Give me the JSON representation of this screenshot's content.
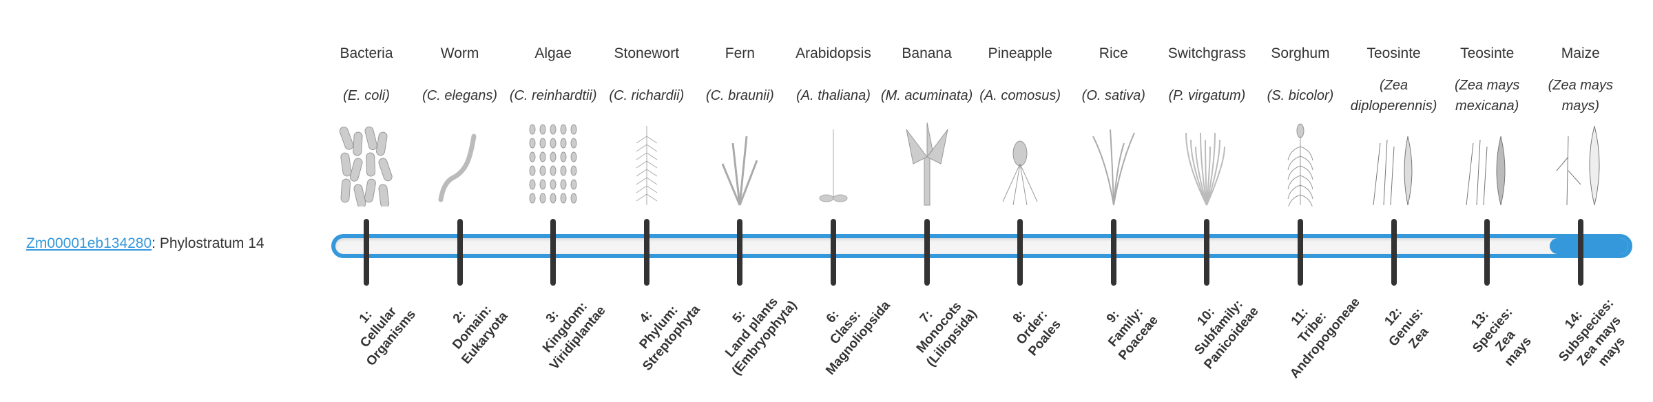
{
  "gene": {
    "id": "Zm00001eb134280",
    "separator": ":",
    "label": "Phylostratum 14"
  },
  "progress": {
    "value": 14,
    "max": 14,
    "color": "#3498db"
  },
  "organisms": [
    {
      "common": "Bacteria",
      "sci": "(E. coli)",
      "icon": "bacteria-illustration"
    },
    {
      "common": "Worm",
      "sci": "(C. elegans)",
      "icon": "worm-illustration"
    },
    {
      "common": "Algae",
      "sci": "(C. reinhardtii)",
      "icon": "algae-illustration"
    },
    {
      "common": "Stonewort",
      "sci": "(C. richardii)",
      "icon": "stonewort-illustration"
    },
    {
      "common": "Fern",
      "sci": "(C. braunii)",
      "icon": "fern-illustration"
    },
    {
      "common": "Arabidopsis",
      "sci": "(A. thaliana)",
      "icon": "arabidopsis-illustration"
    },
    {
      "common": "Banana",
      "sci": "(M. acuminata)",
      "icon": "banana-illustration"
    },
    {
      "common": "Pineapple",
      "sci": "(A. comosus)",
      "icon": "pineapple-illustration"
    },
    {
      "common": "Rice",
      "sci": "(O. sativa)",
      "icon": "rice-illustration"
    },
    {
      "common": "Switchgrass",
      "sci": "(P. virgatum)",
      "icon": "switchgrass-illustration"
    },
    {
      "common": "Sorghum",
      "sci": "(S. bicolor)",
      "icon": "sorghum-illustration"
    },
    {
      "common": "Teosinte",
      "sci": "(Zea diploperennis)",
      "icon": "teosinte-illustration"
    },
    {
      "common": "Teosinte",
      "sci": "(Zea mays mexicana)",
      "icon": "teosinte-illustration"
    },
    {
      "common": "Maize",
      "sci": "(Zea mays mays)",
      "icon": "maize-illustration"
    }
  ],
  "strata": [
    [
      "1:",
      "Cellular",
      "Organisms"
    ],
    [
      "2:",
      "Domain:",
      "Eukaryota"
    ],
    [
      "3:",
      "Kingdom:",
      "Viridiplantae"
    ],
    [
      "4:",
      "Phylum:",
      "Streptophyta"
    ],
    [
      "5:",
      "Land plants",
      "(Embryophyta)"
    ],
    [
      "6:",
      "Class:",
      "Magnoliopsida"
    ],
    [
      "7:",
      "Monocots",
      "(Liliopsida)"
    ],
    [
      "8:",
      "Order:",
      "Poales"
    ],
    [
      "9:",
      "Family:",
      "Poaceae"
    ],
    [
      "10:",
      "Subfamily:",
      "Panicoideae"
    ],
    [
      "11:",
      "Tribe:",
      "Andropogoneae"
    ],
    [
      "12:",
      "Genus:",
      "Zea"
    ],
    [
      "13:",
      "Species:",
      "Zea",
      "mays"
    ],
    [
      "14:",
      "Subspecies:",
      "Zea mays",
      "mays"
    ]
  ]
}
